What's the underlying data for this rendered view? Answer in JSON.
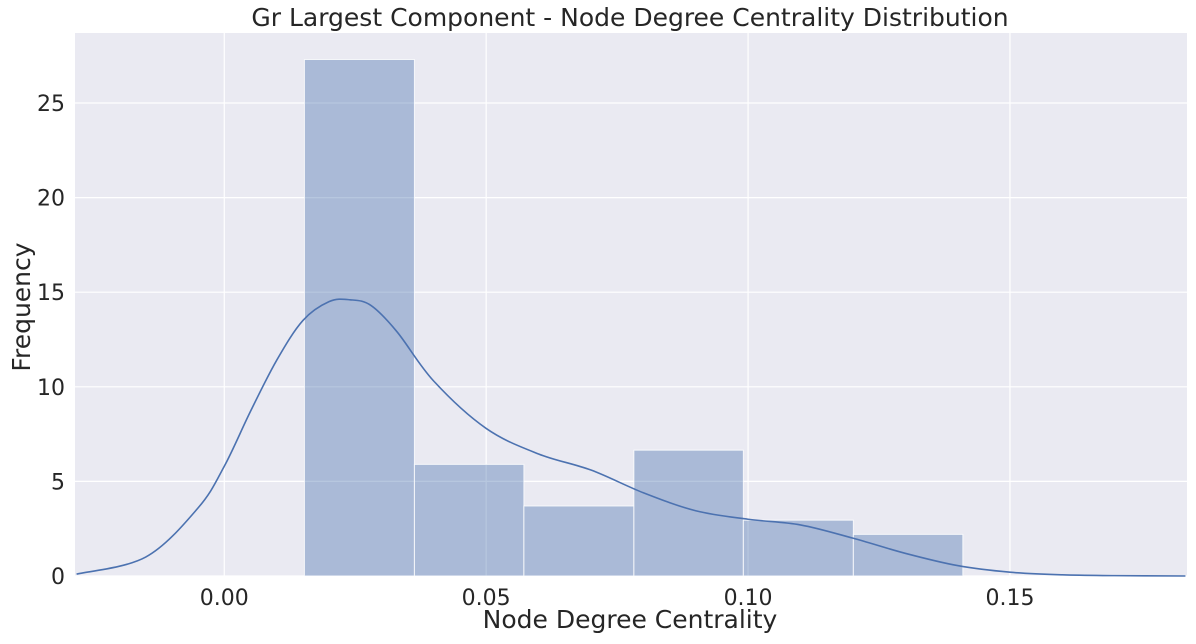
{
  "chart_data": {
    "type": "bar",
    "title": "Gr Largest Component - Node Degree Centrality Distribution",
    "xlabel": "Node Degree Centrality",
    "ylabel": "Frequency",
    "xlim": [
      -0.0285,
      0.1838
    ],
    "ylim": [
      0,
      28.7
    ],
    "x_ticks": [
      0.0,
      0.05,
      0.1,
      0.15
    ],
    "x_tick_labels": [
      "0.00",
      "0.05",
      "0.10",
      "0.15"
    ],
    "y_ticks": [
      0,
      5,
      10,
      15,
      20,
      25
    ],
    "y_tick_labels": [
      "0",
      "5",
      "10",
      "15",
      "20",
      "25"
    ],
    "grid": true,
    "background": "#eaeaf2",
    "bar_color": "#4c72b0",
    "bar_alpha": 0.4,
    "line_color": "#4c72b0",
    "histogram": {
      "bin_edges": [
        0.0153,
        0.0363,
        0.0572,
        0.0782,
        0.0991,
        0.1201,
        0.141
      ],
      "values": [
        27.3,
        5.9,
        3.7,
        6.65,
        2.95,
        2.2
      ]
    },
    "kde": {
      "x": [
        -0.0282,
        -0.015,
        -0.005,
        0.0,
        0.005,
        0.01,
        0.015,
        0.02,
        0.024,
        0.028,
        0.033,
        0.04,
        0.05,
        0.06,
        0.07,
        0.08,
        0.09,
        0.1,
        0.11,
        0.12,
        0.13,
        0.14,
        0.15,
        0.16,
        0.17,
        0.1835
      ],
      "y": [
        0.1,
        1.0,
        3.6,
        5.8,
        8.7,
        11.4,
        13.5,
        14.5,
        14.6,
        14.3,
        12.9,
        10.3,
        7.8,
        6.45,
        5.6,
        4.4,
        3.45,
        3.0,
        2.7,
        2.0,
        1.2,
        0.55,
        0.2,
        0.06,
        0.02,
        0.0
      ]
    }
  }
}
